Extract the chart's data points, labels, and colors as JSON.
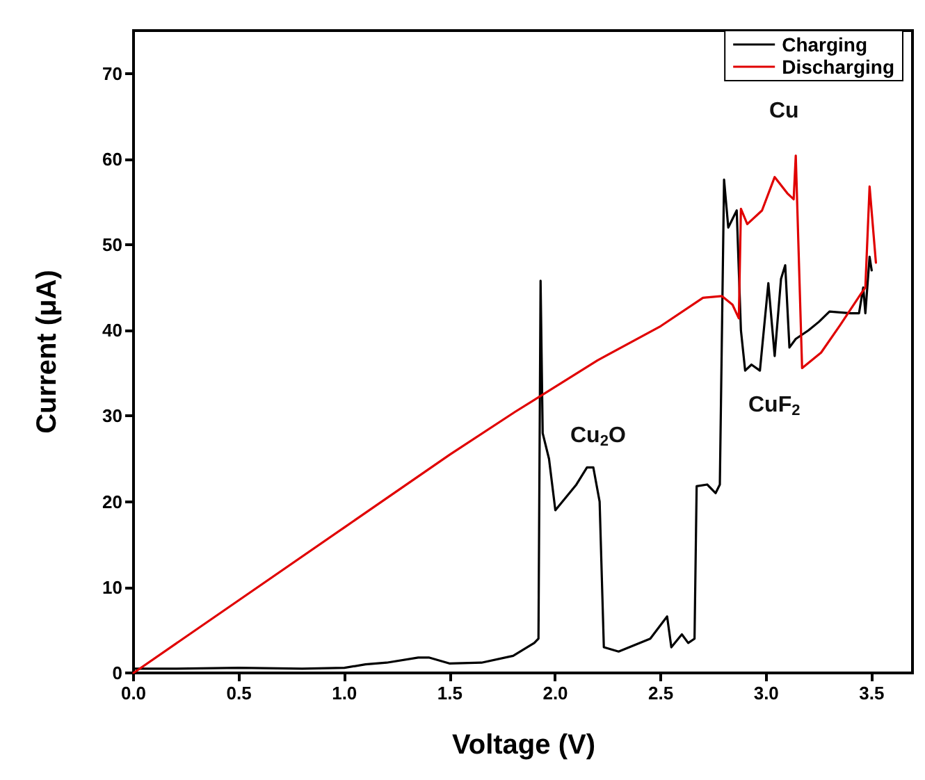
{
  "chart_data": {
    "type": "line",
    "xlabel": "Voltage (V)",
    "ylabel": "Current (μA)",
    "xlim": [
      0,
      3.7
    ],
    "xticks": [
      {
        "value": 0,
        "label": "0.0"
      },
      0.5,
      {
        "value": 1,
        "label": "1.0"
      },
      1.5,
      {
        "value": 2,
        "label": "2.0"
      },
      2.5,
      {
        "value": 3,
        "label": "3.0"
      },
      3.5
    ],
    "ylim": [
      0,
      75
    ],
    "yticks": [
      0,
      10,
      20,
      30,
      40,
      50,
      60,
      70
    ],
    "legend": "top right",
    "grid": false,
    "marker": "none",
    "line_style": "solid",
    "series": [
      {
        "name": "Charging",
        "color": "#000000",
        "x": [
          0,
          0.2,
          0.5,
          0.8,
          1.0,
          1.1,
          1.2,
          1.35,
          1.4,
          1.5,
          1.65,
          1.8,
          1.9,
          1.92,
          1.93,
          1.94,
          1.97,
          2.0,
          2.1,
          2.15,
          2.18,
          2.21,
          2.23,
          2.3,
          2.45,
          2.53,
          2.55,
          2.6,
          2.63,
          2.66,
          2.67,
          2.72,
          2.76,
          2.78,
          2.8,
          2.82,
          2.84,
          2.86,
          2.88,
          2.9,
          2.93,
          2.97,
          3.01,
          3.04,
          3.07,
          3.09,
          3.11,
          3.14,
          3.2,
          3.25,
          3.3,
          3.4,
          3.44,
          3.46,
          3.47,
          3.49,
          3.5
        ],
        "values": [
          0.5,
          0.5,
          0.6,
          0.5,
          0.6,
          1.0,
          1.2,
          1.8,
          1.8,
          1.1,
          1.2,
          2.0,
          3.5,
          4,
          45.8,
          28,
          25,
          19,
          22,
          24,
          24,
          20,
          3,
          2.5,
          4,
          6.6,
          3,
          4.5,
          3.5,
          4,
          21.8,
          22,
          21,
          22,
          57.6,
          52,
          53,
          54,
          40,
          35.3,
          36,
          35.3,
          45.5,
          37,
          46,
          47.6,
          38,
          39,
          40,
          41,
          42.2,
          42,
          42,
          45,
          42,
          48.6,
          47
        ]
      },
      {
        "name": "Discharging",
        "color": "#e00000",
        "x": [
          0,
          0.5,
          1.0,
          1.5,
          1.81,
          2.2,
          2.5,
          2.7,
          2.79,
          2.84,
          2.87,
          2.88,
          2.91,
          2.98,
          3.04,
          3.1,
          3.13,
          3.14,
          3.17,
          3.26,
          3.35,
          3.45,
          3.47,
          3.49,
          3.52
        ],
        "values": [
          0,
          8.5,
          17,
          25.5,
          30.5,
          36.5,
          40.5,
          43.8,
          44,
          43,
          41.4,
          54.2,
          52.4,
          54,
          57.9,
          56,
          55.3,
          60.4,
          35.6,
          37.4,
          40.6,
          44.3,
          45,
          56.8,
          47.9
        ]
      }
    ],
    "annotations": [
      "Cu",
      "Cu$_{2}$O",
      "CuF$_{2}$"
    ]
  }
}
